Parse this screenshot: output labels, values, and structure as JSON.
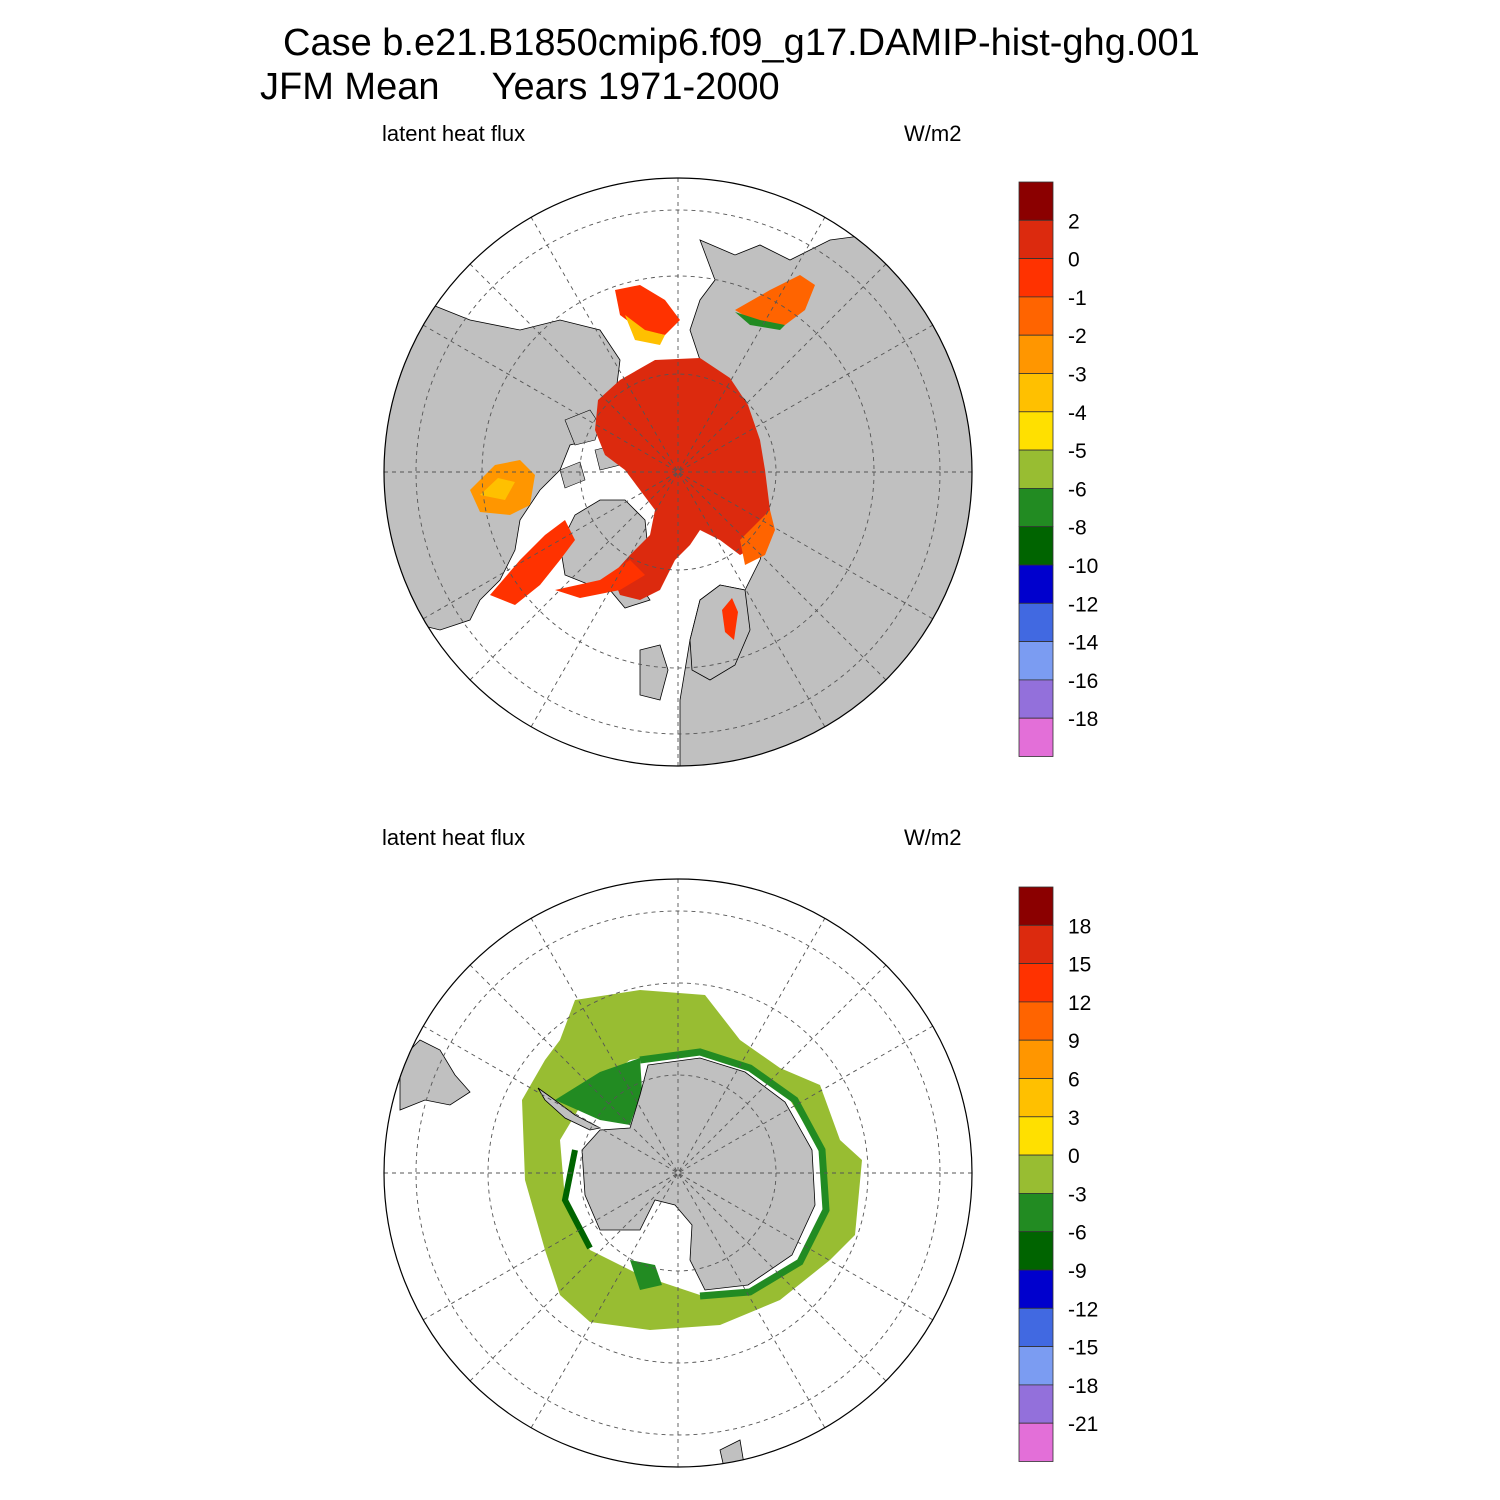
{
  "header": {
    "case_line": "Case b.e21.B1850cmip6.f09_g17.DAMIP-hist-ghg.001",
    "period_line": "JFM Mean     Years 1971-2000"
  },
  "colors": {
    "land": "#c0c0c0",
    "ocean_nodata": "#ffffff",
    "scale": [
      "#e36fd8",
      "#9370db",
      "#7b9cf2",
      "#4169e1",
      "#0000cd",
      "#006400",
      "#228b22",
      "#98bd32",
      "#ffe000",
      "#ffc000",
      "#ff9600",
      "#ff6400",
      "#ff3200",
      "#dc2a0e",
      "#8b0000"
    ]
  },
  "chart_data": [
    {
      "type": "polar-map",
      "hemisphere": "north",
      "variable": "latent heat flux",
      "units": "W/m2",
      "colorbar_labels": [
        "2",
        "0",
        "-1",
        "-2",
        "-3",
        "-4",
        "-5",
        "-6",
        "-8",
        "-10",
        "-12",
        "-14",
        "-16",
        "-18"
      ],
      "colorbar_levels": [
        -18,
        -16,
        -14,
        -12,
        -10,
        -8,
        -6,
        -5,
        -4,
        -3,
        -2,
        -1,
        0,
        2
      ],
      "dominant_value_range": [
        0,
        2
      ]
    },
    {
      "type": "polar-map",
      "hemisphere": "south",
      "variable": "latent heat flux",
      "units": "W/m2",
      "colorbar_labels": [
        "18",
        "15",
        "12",
        "9",
        "6",
        "3",
        "0",
        "-3",
        "-6",
        "-9",
        "-12",
        "-15",
        "-18",
        "-21"
      ],
      "colorbar_levels": [
        -21,
        -18,
        -15,
        -12,
        -9,
        -6,
        -3,
        0,
        3,
        6,
        9,
        12,
        15,
        18
      ],
      "dominant_value_range": [
        -3,
        0
      ]
    }
  ]
}
